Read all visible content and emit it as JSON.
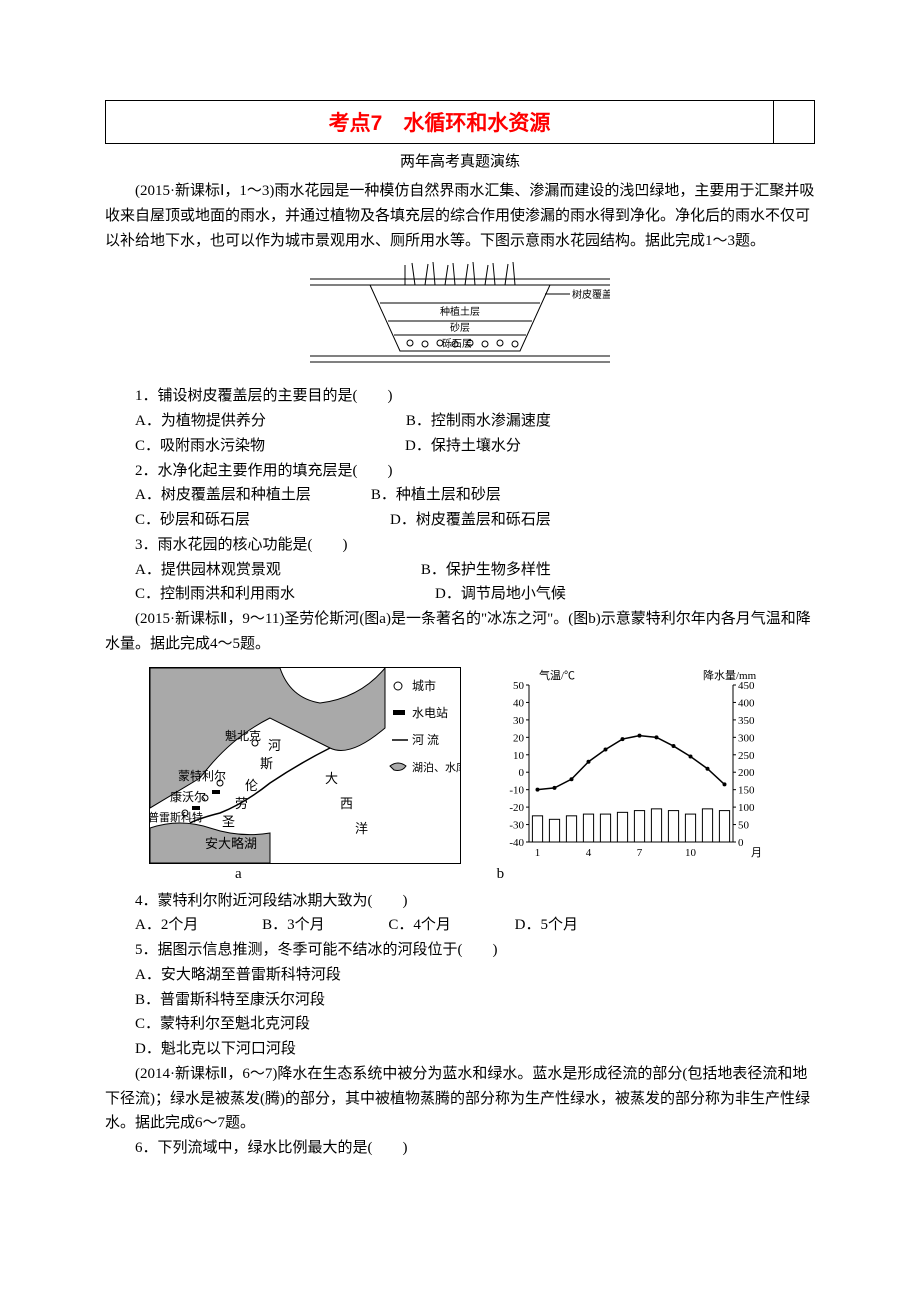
{
  "title": "考点7　水循环和水资源",
  "subtitle": "两年高考真题演练",
  "intro1": "(2015·新课标Ⅰ，1～3)雨水花园是一种模仿自然界雨水汇集、渗漏而建设的浅凹绿地，主要用于汇聚并吸收来自屋顶或地面的雨水，并通过植物及各填充层的综合作用使渗漏的雨水得到净化。净化后的雨水不仅可以补给地下水，也可以作为城市景观用水、厕所用水等。下图示意雨水花园结构。据此完成1～3题。",
  "fig1": {
    "layers": [
      "树皮覆盖层",
      "种植土层",
      "砂层",
      "砾石层"
    ],
    "colors": {
      "outline": "#000000",
      "bg": "#ffffff",
      "hatch": "#000000"
    }
  },
  "q1": {
    "stem": "1．铺设树皮覆盖层的主要目的是(　　)",
    "A": "A．为植物提供养分",
    "B": "B．控制雨水渗漏速度",
    "C": "C．吸附雨水污染物",
    "D": "D．保持土壤水分"
  },
  "q2": {
    "stem": "2．水净化起主要作用的填充层是(　　)",
    "A": "A．树皮覆盖层和种植土层",
    "B": "B．种植土层和砂层",
    "C": "C．砂层和砾石层",
    "D": "D．树皮覆盖层和砾石层"
  },
  "q3": {
    "stem": "3．雨水花园的核心功能是(　　)",
    "A": "A．提供园林观赏景观",
    "B": "B．保护生物多样性",
    "C": "C．控制雨洪和利用雨水",
    "D": "D．调节局地小气候"
  },
  "intro2": "(2015·新课标Ⅱ，9～11)圣劳伦斯河(图a)是一条著名的\"冰冻之河\"。(图b)示意蒙特利尔年内各月气温和降水量。据此完成4～5题。",
  "map": {
    "cities": [
      "魁北克",
      "蒙特利尔",
      "康沃尔",
      "普雷斯科特"
    ],
    "labels": {
      "river1": "河",
      "river2": "斯",
      "river3": "伦",
      "river4": "劳",
      "river5": "圣",
      "lake": "安大略湖",
      "ocean1": "大",
      "ocean2": "西",
      "ocean3": "洋"
    },
    "legend": {
      "city": "城市",
      "dam": "水电站",
      "river": "河 流",
      "lake": "湖泊、水库"
    },
    "colors": {
      "water": "#a9a9a9",
      "land": "#ffffff",
      "line": "#000000"
    }
  },
  "chart": {
    "title_left": "气温/℃",
    "title_right": "降水量/mm",
    "y_left_ticks": [
      50,
      40,
      30,
      20,
      10,
      0,
      -10,
      -20,
      -30,
      -40
    ],
    "y_right_ticks": [
      450,
      400,
      350,
      300,
      250,
      200,
      150,
      100,
      50,
      0
    ],
    "x_ticks": [
      1,
      4,
      7,
      10
    ],
    "x_label": "月",
    "temp_values": [
      -10,
      -9,
      -4,
      6,
      13,
      19,
      21,
      20,
      15,
      9,
      2,
      -7
    ],
    "precip_values": [
      75,
      65,
      75,
      80,
      80,
      85,
      90,
      95,
      90,
      80,
      95,
      90
    ],
    "colors": {
      "axis": "#000000",
      "grid": "#000000",
      "temp_line": "#000000",
      "bar": "#ffffff",
      "bar_stroke": "#000000",
      "bg": "#ffffff"
    },
    "y_left_range": [
      -40,
      50
    ],
    "y_right_range": [
      0,
      450
    ],
    "fontsize": 11
  },
  "fig_labels": {
    "a": "a",
    "b": "b"
  },
  "q4": {
    "stem": "4．蒙特利尔附近河段结冰期大致为(　　)",
    "A": "A．2个月",
    "B": "B．3个月",
    "C": "C．4个月",
    "D": "D．5个月"
  },
  "q5": {
    "stem": "5．据图示信息推测，冬季可能不结冰的河段位于(　　)",
    "A": "A．安大略湖至普雷斯科特河段",
    "B": "B．普雷斯科特至康沃尔河段",
    "C": "C．蒙特利尔至魁北克河段",
    "D": "D．魁北克以下河口河段"
  },
  "intro3": "(2014·新课标Ⅱ，6～7)降水在生态系统中被分为蓝水和绿水。蓝水是形成径流的部分(包括地表径流和地下径流)；绿水是被蒸发(腾)的部分，其中被植物蒸腾的部分称为生产性绿水，被蒸发的部分称为非生产性绿水。据此完成6～7题。",
  "q6": {
    "stem": "6．下列流域中，绿水比例最大的是(　　)"
  }
}
